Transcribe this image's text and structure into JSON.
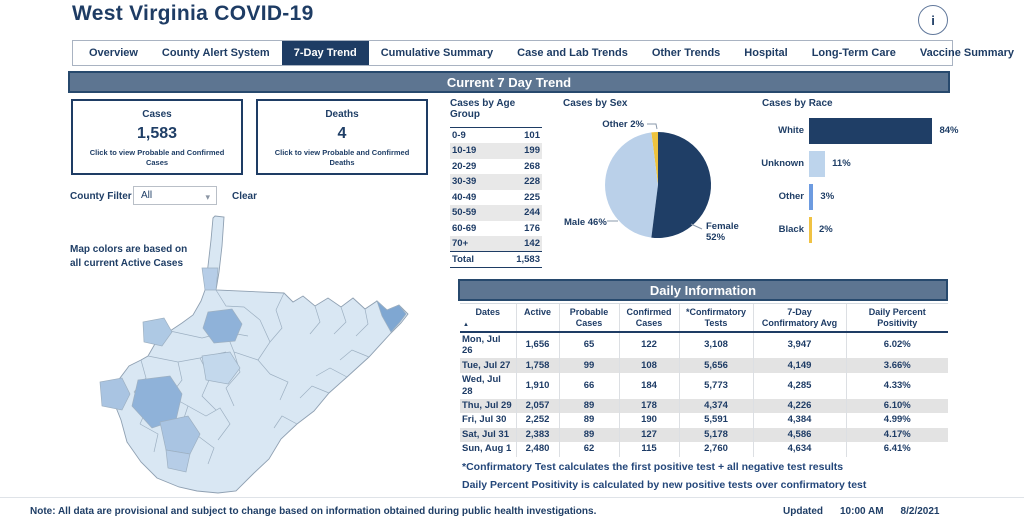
{
  "header": {
    "title": "West Virginia COVID-19",
    "info_icon": "i"
  },
  "tabs": [
    {
      "label": "Overview",
      "selected": false
    },
    {
      "label": "County Alert System",
      "selected": false
    },
    {
      "label": "7-Day Trend",
      "selected": true
    },
    {
      "label": "Cumulative Summary",
      "selected": false
    },
    {
      "label": "Case and Lab Trends",
      "selected": false
    },
    {
      "label": "Other Trends",
      "selected": false
    },
    {
      "label": "Hospital",
      "selected": false
    },
    {
      "label": "Long-Term Care",
      "selected": false
    },
    {
      "label": "Vaccine Summary",
      "selected": false
    }
  ],
  "bands": {
    "trend": "Current 7 Day Trend",
    "daily": "Daily Information"
  },
  "cards": {
    "cases": {
      "title": "Cases",
      "value": "1,583",
      "subtitle": "Click to view Probable and Confirmed Cases"
    },
    "deaths": {
      "title": "Deaths",
      "value": "4",
      "subtitle": "Click to view Probable and Confirmed Deaths"
    }
  },
  "county_filter": {
    "label": "County Filter",
    "value": "All",
    "clear": "Clear"
  },
  "map": {
    "note": "Map colors are based on all current Active Cases"
  },
  "age_group": {
    "title": "Cases by Age Group",
    "rows": [
      [
        "0-9",
        "101"
      ],
      [
        "10-19",
        "199"
      ],
      [
        "20-29",
        "268"
      ],
      [
        "30-39",
        "228"
      ],
      [
        "40-49",
        "225"
      ],
      [
        "50-59",
        "244"
      ],
      [
        "60-69",
        "176"
      ],
      [
        "70+",
        "142"
      ]
    ],
    "total_label": "Total",
    "total_value": "1,583"
  },
  "chart_data": [
    {
      "type": "pie",
      "title": "Cases by Sex",
      "labels": [
        "Female",
        "Male",
        "Other"
      ],
      "values": [
        52,
        46,
        2
      ],
      "colors": [
        "#1f3e66",
        "#bad0e9",
        "#eec33e"
      ],
      "labels_display": {
        "other": "Other 2%",
        "male": "Male 46%",
        "female_line1": "Female",
        "female_line2": "52%"
      }
    },
    {
      "type": "bar",
      "title": "Cases by Race",
      "orientation": "horizontal",
      "categories": [
        "White",
        "Unknown",
        "Other",
        "Black"
      ],
      "values": [
        84,
        11,
        3,
        2
      ],
      "unit": "%",
      "colors": [
        "#1f3e66",
        "#bdd4ec",
        "#6d9be0",
        "#f0c243"
      ],
      "xlim": [
        0,
        100
      ]
    }
  ],
  "daily_table": {
    "headers": [
      [
        "Dates"
      ],
      [
        "Active"
      ],
      [
        "Probable",
        "Cases"
      ],
      [
        "Confirmed",
        "Cases"
      ],
      [
        "*Confirmatory",
        "Tests"
      ],
      [
        "7-Day",
        "Confirmatory Avg"
      ],
      [
        "Daily Percent",
        "Positivity"
      ]
    ],
    "sort_icon": "▲",
    "rows": [
      [
        "Mon, Jul 26",
        "1,656",
        "65",
        "122",
        "3,108",
        "3,947",
        "6.02%"
      ],
      [
        "Tue, Jul 27",
        "1,758",
        "99",
        "108",
        "5,656",
        "4,149",
        "3.66%"
      ],
      [
        "Wed, Jul 28",
        "1,910",
        "66",
        "184",
        "5,773",
        "4,285",
        "4.33%"
      ],
      [
        "Thu, Jul 29",
        "2,057",
        "89",
        "178",
        "4,374",
        "4,226",
        "6.10%"
      ],
      [
        "Fri, Jul 30",
        "2,252",
        "89",
        "190",
        "5,591",
        "4,384",
        "4.99%"
      ],
      [
        "Sat, Jul 31",
        "2,383",
        "89",
        "127",
        "5,178",
        "4,586",
        "4.17%"
      ],
      [
        "Sun, Aug 1",
        "2,480",
        "62",
        "115",
        "2,760",
        "4,634",
        "6.41%"
      ]
    ]
  },
  "footnotes": [
    "*Confirmatory Test calculates the first positive test + all negative test results",
    "Daily Percent Positivity is calculated by new positive tests over confirmatory test"
  ],
  "footer": {
    "note": "Note: All data are provisional and subject to change based on information obtained during public health investigations.",
    "updated_label": "Updated",
    "time": "10:00 AM",
    "date": "8/2/2021"
  },
  "colors": {
    "navy": "#1f3e66",
    "band": "#5d7591",
    "band_border": "#27496d",
    "stripe": "#e3e3e3"
  }
}
